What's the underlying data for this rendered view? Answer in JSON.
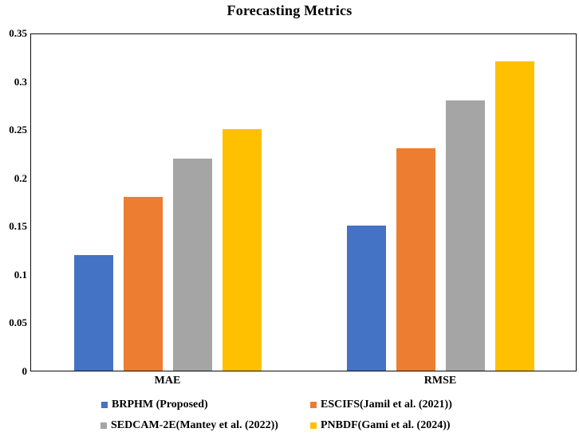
{
  "title": "Forecasting Metrics",
  "axis_color": "#0d0d0d",
  "background_color": "#ffffff",
  "chart_data": {
    "type": "bar",
    "title": "Forecasting Metrics",
    "categories": [
      "MAE",
      "RMSE"
    ],
    "series": [
      {
        "name": "BRPHM (Proposed)",
        "color": "#4472C4",
        "values": [
          0.12,
          0.15
        ]
      },
      {
        "name": "ESCIFS(Jamil et al. (2021))",
        "color": "#ED7D31",
        "values": [
          0.18,
          0.23
        ]
      },
      {
        "name": "SEDCAM-2E(Mantey et al. (2022))",
        "color": "#A5A5A5",
        "values": [
          0.22,
          0.28
        ]
      },
      {
        "name": "PNBDF(Gami et al. (2024))",
        "color": "#FFC000",
        "values": [
          0.25,
          0.32
        ]
      }
    ],
    "xlabel": "",
    "ylabel": "",
    "ylim": [
      0,
      0.35
    ],
    "yticks": [
      0,
      0.05,
      0.1,
      0.15,
      0.2,
      0.25,
      0.3,
      0.35
    ],
    "ytick_labels": [
      "0",
      "0.05",
      "0.1",
      "0.15",
      "0.2",
      "0.25",
      "0.3",
      "0.35"
    ],
    "grid": false,
    "legend_position": "bottom"
  }
}
